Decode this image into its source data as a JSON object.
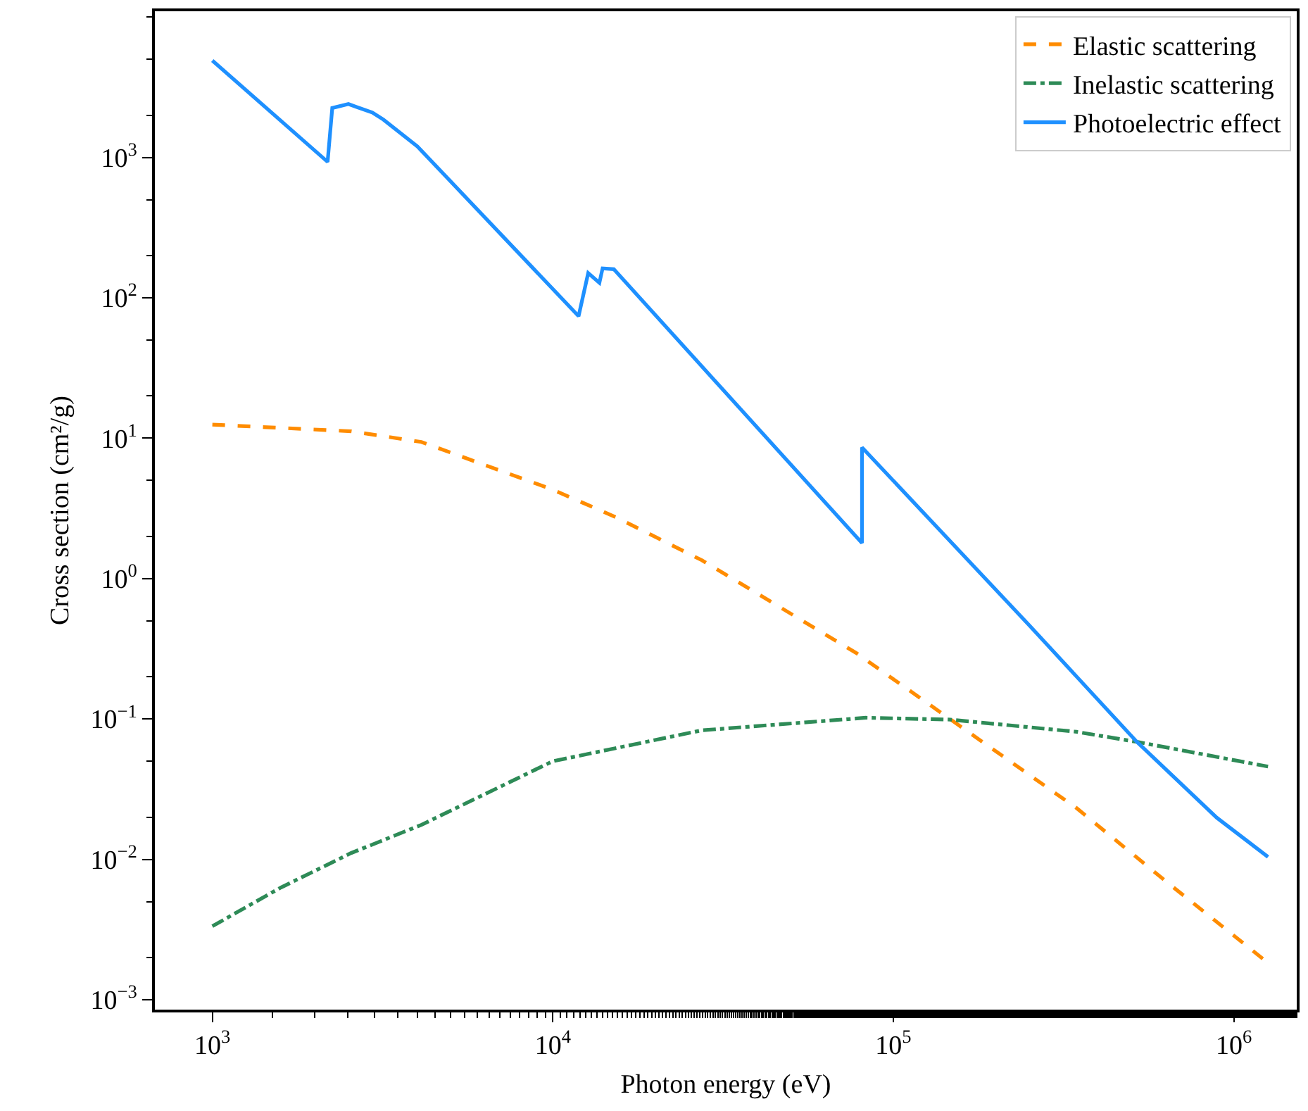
{
  "chart_data": {
    "type": "line",
    "xlabel": "Photon energy (eV)",
    "ylabel": "Cross section (cm²/g)",
    "log": "xy",
    "grid": false,
    "legend": "top right",
    "marker": "none",
    "xlim": [
      678,
      1530000
    ],
    "ylim": [
      0.00085,
      11000
    ],
    "xticks": [
      {
        "value": 1000,
        "label": "10$^{3}$"
      },
      {
        "value": 10000,
        "label": "10$^{4}$"
      },
      {
        "value": 100000,
        "label": "10$^{5}$"
      },
      {
        "value": 1000000,
        "label": "10$^{6}$"
      }
    ],
    "yticks": [
      {
        "value": 0.001,
        "label": "10$^{−3}$"
      },
      {
        "value": 0.01,
        "label": "10$^{−2}$"
      },
      {
        "value": 0.1,
        "label": "10$^{−1}$"
      },
      {
        "value": 1,
        "label": "10$^{0}$"
      },
      {
        "value": 10,
        "label": "10$^{1}$"
      },
      {
        "value": 100,
        "label": "10$^{2}$"
      },
      {
        "value": 1000,
        "label": "10$^{3}$"
      }
    ],
    "series": [
      {
        "name": "Elastic scattering",
        "color": "#ff8c00",
        "line_style": "dashed",
        "x": [
          1000,
          2560,
          4110,
          10000,
          15500,
          27400,
          77800,
          147000,
          345000,
          646000,
          1260000
        ],
        "values": [
          12.5,
          11.2,
          9.4,
          4.3,
          2.7,
          1.35,
          0.295,
          0.0995,
          0.0232,
          0.00667,
          0.00183
        ]
      },
      {
        "name": "Inelastic scattering",
        "color": "#2e8b57",
        "line_style": "dashdot",
        "x": [
          1000,
          1590,
          2560,
          4110,
          10000,
          27400,
          83000,
          147000,
          345000,
          519000,
          1260000
        ],
        "values": [
          0.00334,
          0.0063,
          0.0111,
          0.0176,
          0.05,
          0.083,
          0.102,
          0.099,
          0.081,
          0.0687,
          0.0458
        ]
      },
      {
        "name": "Photoelectric effect",
        "color": "#1e90ff",
        "line_style": "solid",
        "x": [
          1000,
          2180,
          2250,
          2510,
          2950,
          3180,
          4000,
          11900,
          12700,
          13700,
          14000,
          15100,
          80900,
          80900,
          250000,
          519000,
          891000,
          1260000
        ],
        "values": [
          4900,
          930,
          2250,
          2400,
          2090,
          1860,
          1200,
          74,
          150,
          128,
          162,
          160,
          1.79,
          8.6,
          0.468,
          0.0687,
          0.0198,
          0.0104
        ]
      }
    ]
  }
}
